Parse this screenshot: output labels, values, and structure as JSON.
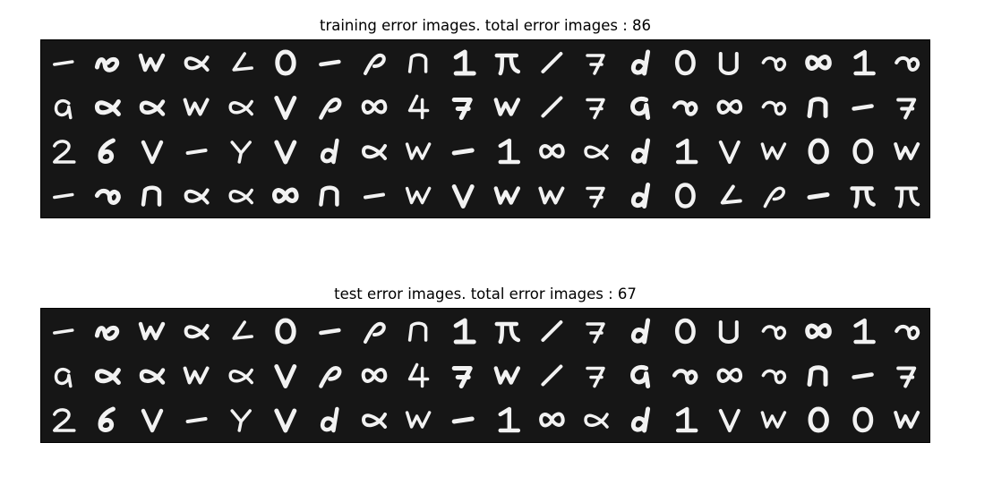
{
  "training": {
    "title": "training error images. total error images : 86",
    "rows": 4,
    "cols": 20,
    "glyphs": [
      "dash",
      "loop",
      "w",
      "alpha",
      "angle",
      "o",
      "dash",
      "p",
      "n",
      "one",
      "pi",
      "slash",
      "seven",
      "d",
      "o",
      "u",
      "lo",
      "inf",
      "one",
      "lo",
      "a",
      "alpha",
      "alpha",
      "w",
      "alpha",
      "v",
      "p",
      "inf",
      "four",
      "seven",
      "w",
      "slash",
      "seven",
      "q",
      "lo",
      "inf",
      "lo",
      "n",
      "dash",
      "seven",
      "two",
      "six",
      "v",
      "dash",
      "y",
      "v",
      "d",
      "alpha",
      "w",
      "dash",
      "one",
      "inf",
      "alpha",
      "d",
      "one",
      "v",
      "w",
      "o",
      "o",
      "w",
      "dash",
      "lo",
      "n",
      "alpha",
      "alpha",
      "inf",
      "n",
      "dash",
      "w",
      "v",
      "w",
      "w",
      "seven",
      "d",
      "o",
      "angle",
      "p",
      "dash",
      "pi",
      "pi"
    ]
  },
  "test": {
    "title": "test error images. total error images : 67",
    "rows": 3,
    "cols": 20,
    "glyphs": [
      "dash",
      "loop",
      "w",
      "alpha",
      "angle",
      "o",
      "dash",
      "p",
      "n",
      "one",
      "pi",
      "slash",
      "seven",
      "d",
      "o",
      "u",
      "lo",
      "inf",
      "one",
      "lo",
      "a",
      "alpha",
      "alpha",
      "w",
      "alpha",
      "v",
      "p",
      "inf",
      "four",
      "seven",
      "w",
      "slash",
      "seven",
      "q",
      "lo",
      "inf",
      "lo",
      "n",
      "dash",
      "seven",
      "two",
      "six",
      "v",
      "dash",
      "y",
      "v",
      "d",
      "alpha",
      "w",
      "dash",
      "one",
      "inf",
      "alpha",
      "d",
      "one",
      "v",
      "w",
      "o",
      "o",
      "w"
    ]
  }
}
